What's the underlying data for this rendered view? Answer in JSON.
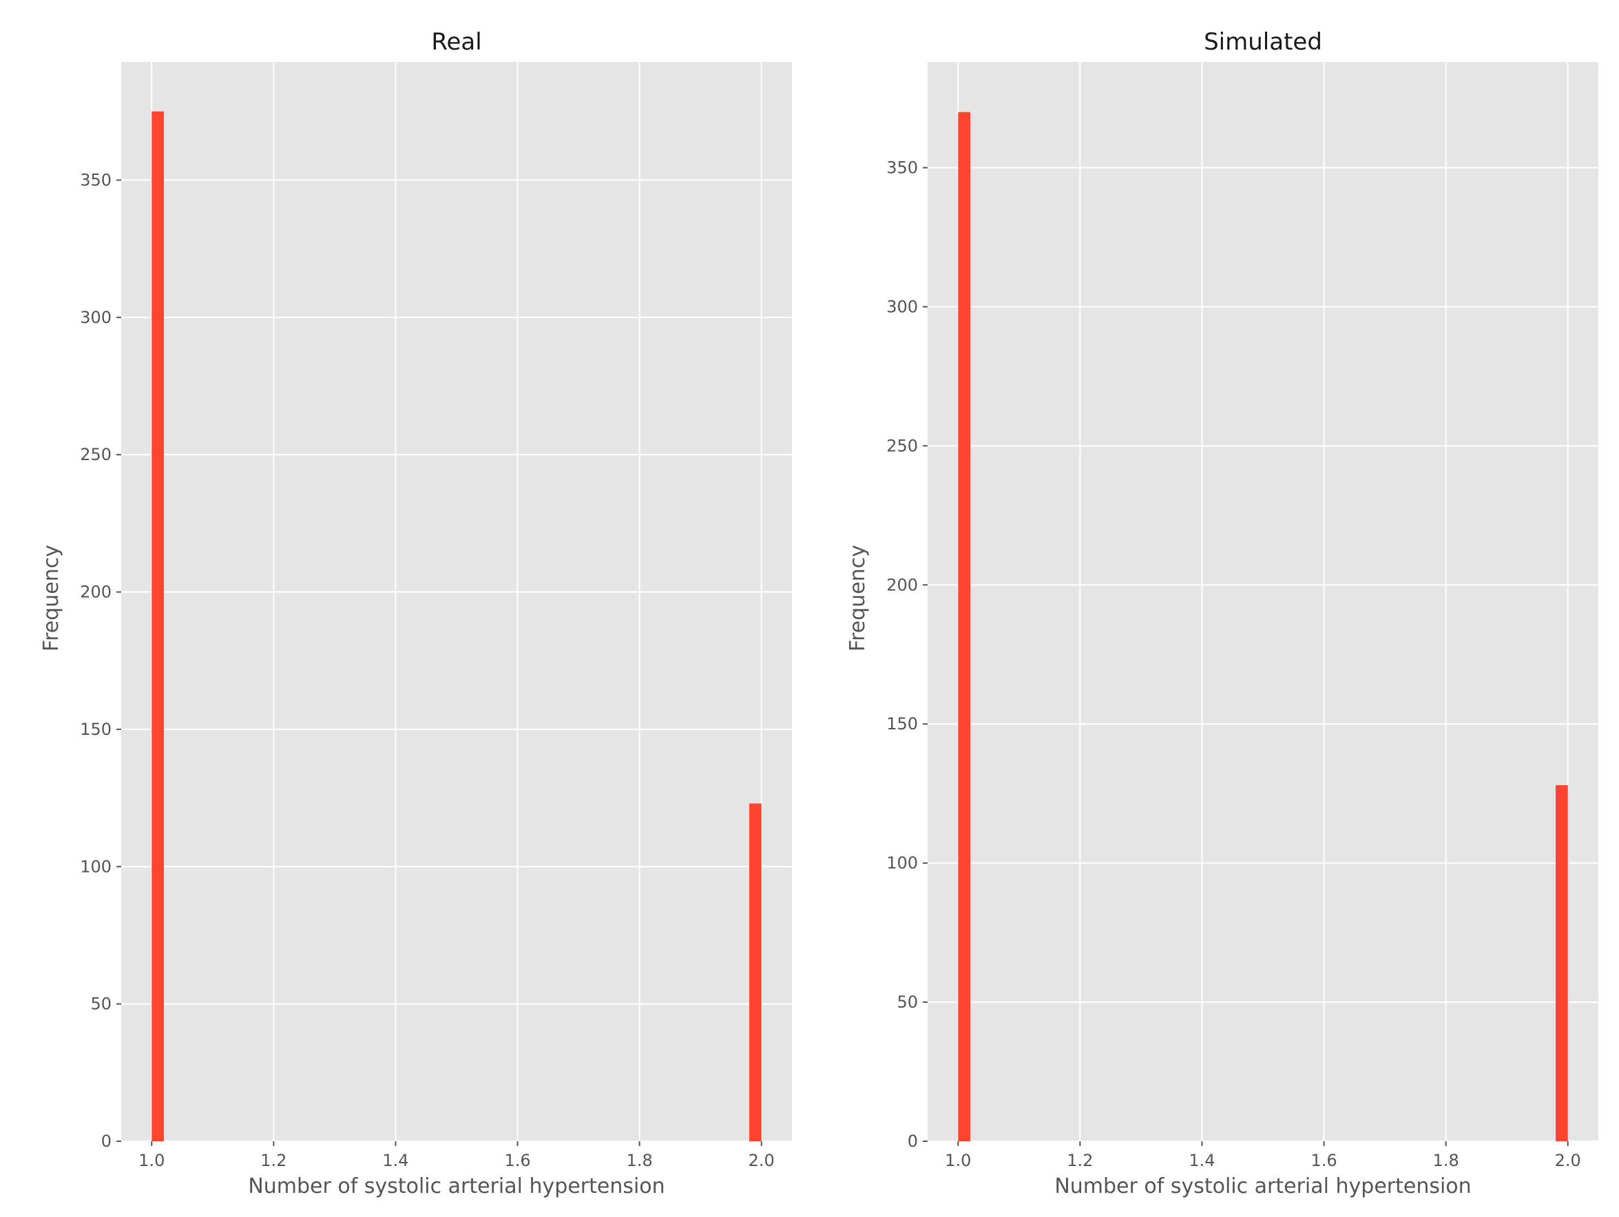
{
  "colors": {
    "figure_background": "#ffffff",
    "plot_background": "#e5e5e5",
    "grid": "#ffffff",
    "bar": "#ff4530",
    "text": "#555555",
    "title_text": "#1a1a1a"
  },
  "chart_data": [
    {
      "type": "bar",
      "title": "Real",
      "xlabel": "Number of systolic arterial hypertension",
      "ylabel": "Frequency",
      "xlim": [
        0.95,
        2.05
      ],
      "ylim": [
        0,
        393
      ],
      "xticks": [
        1.0,
        1.2,
        1.4,
        1.6,
        1.8,
        2.0
      ],
      "xtick_labels": [
        "1.0",
        "1.2",
        "1.4",
        "1.6",
        "1.8",
        "2.0"
      ],
      "yticks": [
        0,
        50,
        100,
        150,
        200,
        250,
        300,
        350
      ],
      "ytick_labels": [
        "0",
        "50",
        "100",
        "150",
        "200",
        "250",
        "300",
        "350"
      ],
      "bin_width": 0.02,
      "bars": [
        {
          "x": 1.0,
          "value": 375
        },
        {
          "x": 1.98,
          "value": 123
        }
      ],
      "grid": true,
      "legend": "none"
    },
    {
      "type": "bar",
      "title": "Simulated",
      "xlabel": "Number of systolic arterial hypertension",
      "ylabel": "Frequency",
      "xlim": [
        0.95,
        2.05
      ],
      "ylim": [
        0,
        388
      ],
      "xticks": [
        1.0,
        1.2,
        1.4,
        1.6,
        1.8,
        2.0
      ],
      "xtick_labels": [
        "1.0",
        "1.2",
        "1.4",
        "1.6",
        "1.8",
        "2.0"
      ],
      "yticks": [
        0,
        50,
        100,
        150,
        200,
        250,
        300,
        350
      ],
      "ytick_labels": [
        "0",
        "50",
        "100",
        "150",
        "200",
        "250",
        "300",
        "350"
      ],
      "bin_width": 0.02,
      "bars": [
        {
          "x": 1.0,
          "value": 370
        },
        {
          "x": 1.98,
          "value": 128
        }
      ],
      "grid": true,
      "legend": "none"
    }
  ]
}
